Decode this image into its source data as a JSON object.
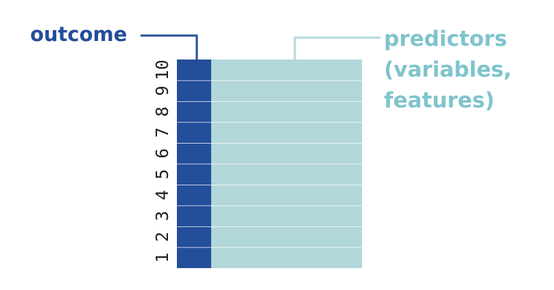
{
  "outcome_label": "outcome",
  "predictors_label": [
    "predictors",
    "(variables,",
    "features)"
  ],
  "rows": [
    "1",
    "2",
    "3",
    "4",
    "5",
    "6",
    "7",
    "8",
    "9",
    "10"
  ]
}
